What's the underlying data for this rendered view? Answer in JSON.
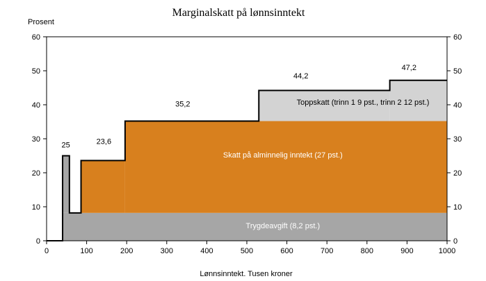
{
  "chart_data": {
    "type": "area",
    "title": "Marginalskatt på lønnsinntekt",
    "ylabel": "Prosent",
    "xlabel": "Lønnsinntekt. Tusen kroner",
    "xlim": [
      0,
      1000
    ],
    "ylim": [
      0,
      60
    ],
    "x_ticks": [
      0,
      100,
      200,
      300,
      400,
      500,
      600,
      700,
      800,
      900,
      1000
    ],
    "y_ticks": [
      0,
      10,
      20,
      30,
      40,
      50,
      60
    ],
    "x_tick_labels": [
      "0",
      "100",
      "200",
      "300",
      "400",
      "500",
      "600",
      "700",
      "800",
      "900",
      "1000"
    ],
    "y_tick_labels": [
      "0",
      "10",
      "20",
      "30",
      "40",
      "50",
      "60"
    ],
    "grid": false,
    "colors": {
      "trygdeavgift": "#a6a6a6",
      "alminnelig": "#d8801e",
      "toppskatt": "#d3d3d3",
      "outline": "#000000"
    },
    "total_marginal_tax": [
      {
        "x_start": 0,
        "x_end": 40,
        "value": 0
      },
      {
        "x_start": 40,
        "x_end": 57,
        "value": 25
      },
      {
        "x_start": 57,
        "x_end": 86,
        "value": 8.2
      },
      {
        "x_start": 86,
        "x_end": 196,
        "value": 23.6
      },
      {
        "x_start": 196,
        "x_end": 530,
        "value": 35.2
      },
      {
        "x_start": 530,
        "x_end": 857,
        "value": 44.2
      },
      {
        "x_start": 857,
        "x_end": 1000,
        "value": 47.2
      }
    ],
    "bands": {
      "trygdeavgift": {
        "label": "Trygdeavgift (8,2 pst.)",
        "segments": [
          {
            "x_start": 40,
            "x_end": 1000,
            "y_low": 0,
            "y_high": 8.2
          }
        ]
      },
      "early_peak": {
        "segments": [
          {
            "x_start": 40,
            "x_end": 57,
            "y_low": 8.2,
            "y_high": 25
          }
        ]
      },
      "alminnelig": {
        "label": "Skatt på alminnelig inntekt (27 pst.)",
        "segments": [
          {
            "x_start": 86,
            "x_end": 196,
            "y_low": 8.2,
            "y_high": 23.6
          },
          {
            "x_start": 196,
            "x_end": 1000,
            "y_low": 8.2,
            "y_high": 35.2
          }
        ]
      },
      "toppskatt": {
        "label": "Toppskatt (trinn 1 9 pst., trinn 2 12 pst.)",
        "segments": [
          {
            "x_start": 530,
            "x_end": 857,
            "y_low": 35.2,
            "y_high": 44.2
          },
          {
            "x_start": 857,
            "x_end": 1000,
            "y_low": 35.2,
            "y_high": 47.2
          }
        ]
      }
    },
    "value_labels": [
      {
        "text": "25",
        "x": 48,
        "y": 27.5
      },
      {
        "text": "23,6",
        "x": 143,
        "y": 28.5
      },
      {
        "text": "35,2",
        "x": 340,
        "y": 39.5
      },
      {
        "text": "44,2",
        "x": 635,
        "y": 47.8
      },
      {
        "text": "47,2",
        "x": 905,
        "y": 50.2
      }
    ],
    "band_labels": [
      {
        "key": "toppskatt",
        "x": 790,
        "y": 40
      },
      {
        "key": "alminnelig",
        "x": 590,
        "y": 24.5
      },
      {
        "key": "trygdeavgift",
        "x": 590,
        "y": 3.7
      }
    ]
  }
}
